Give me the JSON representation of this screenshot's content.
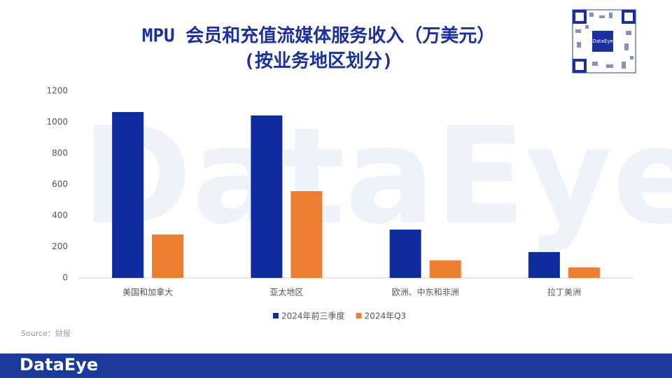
{
  "chart_data": {
    "type": "bar",
    "title": "MPU 会员和充值流媒体服务收入（万美元）",
    "subtitle": "(按业务地区划分)",
    "categories": [
      "美国和加拿大",
      "亚太地区",
      "欧洲、中东和非洲",
      "拉丁美洲"
    ],
    "series": [
      {
        "name": "2024年前三季度",
        "color": "#0f2c9e",
        "values": [
          1065,
          1043,
          310,
          166
        ]
      },
      {
        "name": "2024年Q3",
        "color": "#ed7d31",
        "values": [
          279,
          557,
          112,
          67
        ]
      }
    ],
    "ylim": [
      0,
      1200
    ],
    "yticks": [
      0,
      200,
      400,
      600,
      800,
      1000,
      1200
    ],
    "grid": false,
    "legend": "bottom",
    "source": "Source：财报",
    "watermark": "DataEye",
    "footer_logo": "DataEye",
    "qr_label": "DataEye"
  }
}
